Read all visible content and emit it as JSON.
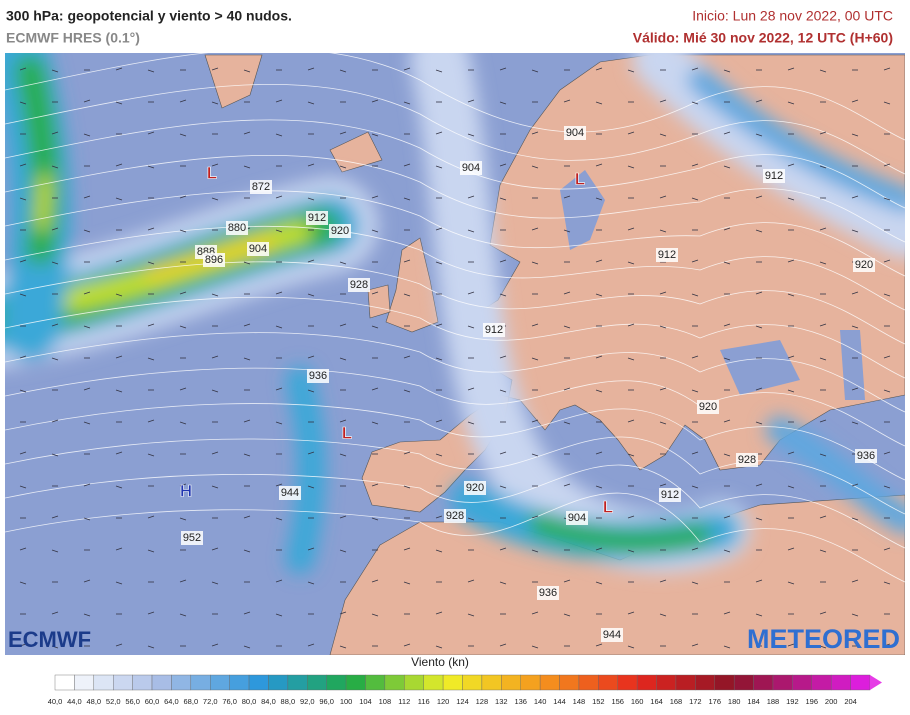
{
  "header": {
    "title": "300 hPa: geopotencial y viento > 40 nudos.",
    "model": "ECMWF HRES (0.1°)",
    "init": "Inicio: Lun 28 nov 2022, 00 UTC",
    "valid": "Válido: Mié 30 nov 2022, 12 UTC (H+60)"
  },
  "map": {
    "contour_labels": [
      "904",
      "904",
      "912",
      "872",
      "912",
      "880",
      "920",
      "888",
      "904",
      "896",
      "912",
      "920",
      "928",
      "912",
      "936",
      "920",
      "928",
      "936",
      "920",
      "912",
      "944",
      "928",
      "904",
      "952",
      "936",
      "944"
    ],
    "centers": [
      "L",
      "L",
      "L",
      "L",
      "H"
    ]
  },
  "logos": {
    "left": "ECMWF",
    "right": "METEORED"
  },
  "legend": {
    "title": "Viento (kn)",
    "labels": [
      "40,0",
      "44,0",
      "48,0",
      "52,0",
      "56,0",
      "60,0",
      "64,0",
      "68,0",
      "72,0",
      "76,0",
      "80,0",
      "84,0",
      "88,0",
      "92,0",
      "96,0",
      "100",
      "104",
      "108",
      "112",
      "116",
      "120",
      "124",
      "128",
      "132",
      "136",
      "140",
      "144",
      "148",
      "152",
      "156",
      "160",
      "164",
      "168",
      "172",
      "176",
      "180",
      "184",
      "188",
      "192",
      "196",
      "200",
      "204"
    ]
  }
}
